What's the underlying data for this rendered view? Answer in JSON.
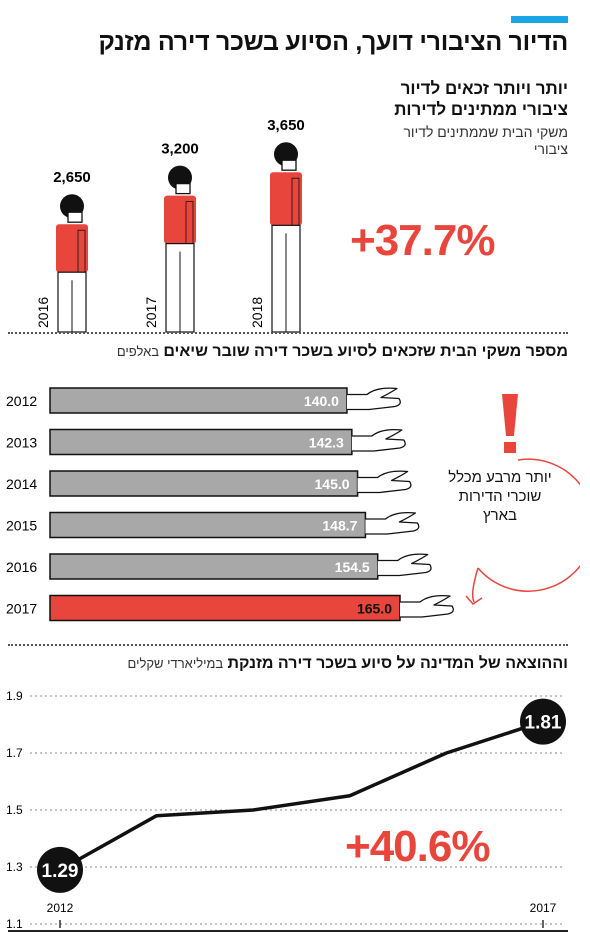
{
  "header": {
    "title": "הדיור הציבורי דועך, הסיוע בשכר דירה מזנק",
    "accent_color": "#1aa5e6"
  },
  "section1": {
    "title": "יותר ויותר זכאים לדיור ציבורי ממתינים לדירות",
    "subtitle": "משקי הבית שממתינים לדיור ציבורי",
    "change": "+37.7%",
    "highlight_color": "#e8453c"
  },
  "section2": {
    "title_bold": "מספר משקי הבית שזכאים לסיוע בשכר דירה שובר שיאים",
    "title_unit": "באלפים",
    "callout": "יותר מרבע מכלל שוכרי הדירות בארץ"
  },
  "section3": {
    "title_bold": "וההוצאה של המדינה על סיוע בשכר דירה מזנקת",
    "title_unit": "במיליארדי שקלים",
    "change": "+40.6%"
  },
  "chart_data": [
    {
      "type": "bar",
      "categories": [
        "2016",
        "2017",
        "2018"
      ],
      "values": [
        2650,
        3200,
        3650
      ],
      "value_labels": [
        "2,650",
        "3,200",
        "3,650"
      ],
      "title": "יותר ויותר זכאים לדיור ציבורי ממתינים לדירות"
    },
    {
      "type": "bar",
      "orientation": "horizontal",
      "categories": [
        "2012",
        "2013",
        "2014",
        "2015",
        "2016",
        "2017"
      ],
      "values": [
        140.0,
        142.3,
        145.0,
        148.7,
        154.5,
        165.0
      ],
      "value_labels": [
        "140.0",
        "142.3",
        "145.0",
        "148.7",
        "154.5",
        "165.0"
      ],
      "xlim": [
        0,
        165
      ],
      "colors": [
        "#a8a8a8",
        "#a8a8a8",
        "#a8a8a8",
        "#a8a8a8",
        "#a8a8a8",
        "#e8453c"
      ]
    },
    {
      "type": "line",
      "x": [
        2012,
        2013,
        2014,
        2015,
        2016,
        2017
      ],
      "values": [
        1.29,
        1.48,
        1.5,
        1.55,
        1.7,
        1.81
      ],
      "ylim": [
        1.1,
        1.9
      ],
      "yticks": [
        "1.1",
        "1.3",
        "1.5",
        "1.7",
        "1.9"
      ],
      "xticks": [
        "2012",
        "2017"
      ],
      "start_label": "1.29",
      "end_label": "1.81"
    }
  ]
}
